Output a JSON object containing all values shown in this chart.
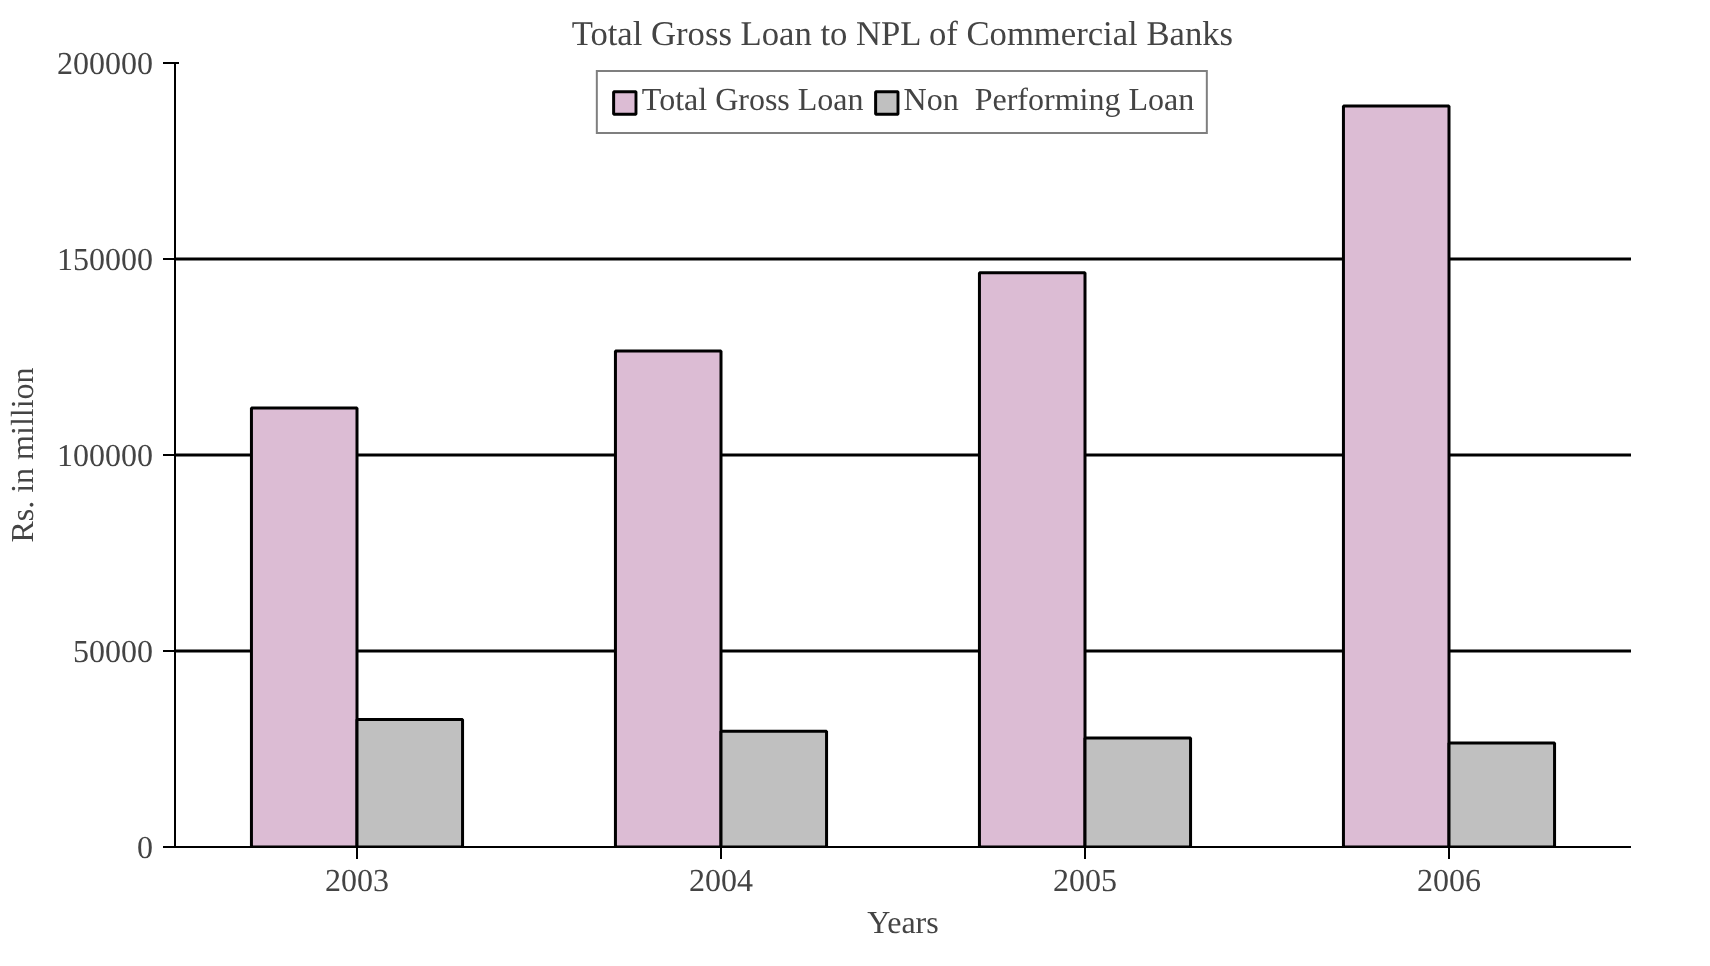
{
  "chart_data": {
    "type": "bar",
    "title": "Total Gross Loan to NPL of Commercial Banks",
    "xlabel": "Years",
    "ylabel": "Rs. in million",
    "categories": [
      "2003",
      "2004",
      "2005",
      "2006"
    ],
    "series": [
      {
        "name": "Total Gross Loan",
        "color": "#dcbcd4",
        "values": [
          112000,
          126500,
          146500,
          189000
        ]
      },
      {
        "name": "Non  Performing Loan",
        "color": "#c0c0c0",
        "values": [
          32500,
          29500,
          27800,
          26500
        ]
      }
    ],
    "ylim": [
      0,
      200000
    ],
    "yticks": [
      0,
      50000,
      100000,
      150000,
      200000
    ],
    "grid": "y",
    "legend": "top"
  }
}
